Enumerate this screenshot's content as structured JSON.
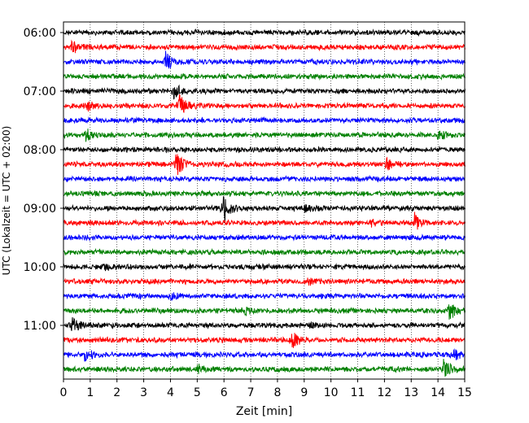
{
  "chart_data": {
    "type": "line",
    "subtype": "helicorder-seismogram",
    "title": "",
    "xlabel": "Zeit  [min]",
    "ylabel": "UTC (Lokalzeit = UTC + 02:00)",
    "xlim": [
      0,
      15
    ],
    "x_ticks": [
      "0",
      "1",
      "2",
      "3",
      "4",
      "5",
      "6",
      "7",
      "8",
      "9",
      "10",
      "11",
      "12",
      "13",
      "14",
      "15"
    ],
    "grid": "vertical dotted at each minute",
    "trace_colors": [
      "#000000",
      "#ff0000",
      "#0000ff",
      "#008000"
    ],
    "trace_interval_min": 15,
    "y_tick_labels": [
      "06:00",
      "07:00",
      "08:00",
      "09:00",
      "10:00",
      "11:00"
    ],
    "traces": [
      {
        "start": "06:00",
        "color": "#000000",
        "events": []
      },
      {
        "start": "06:15",
        "color": "#ff0000",
        "events": [
          {
            "t": 0.3,
            "amp": 0.6
          }
        ]
      },
      {
        "start": "06:30",
        "color": "#0000ff",
        "events": [
          {
            "t": 3.8,
            "amp": 1.0
          }
        ]
      },
      {
        "start": "06:45",
        "color": "#008000",
        "events": []
      },
      {
        "start": "07:00",
        "color": "#000000",
        "events": [
          {
            "t": 4.1,
            "amp": 0.8
          }
        ]
      },
      {
        "start": "07:15",
        "color": "#ff0000",
        "events": [
          {
            "t": 4.3,
            "amp": 1.2
          },
          {
            "t": 0.9,
            "amp": 0.4
          }
        ]
      },
      {
        "start": "07:30",
        "color": "#0000ff",
        "events": []
      },
      {
        "start": "07:45",
        "color": "#008000",
        "events": [
          {
            "t": 0.8,
            "amp": 0.7
          },
          {
            "t": 14.0,
            "amp": 0.5
          }
        ]
      },
      {
        "start": "08:00",
        "color": "#000000",
        "events": []
      },
      {
        "start": "08:15",
        "color": "#ff0000",
        "events": [
          {
            "t": 4.2,
            "amp": 1.3
          },
          {
            "t": 12.0,
            "amp": 0.9
          }
        ]
      },
      {
        "start": "08:30",
        "color": "#0000ff",
        "events": []
      },
      {
        "start": "08:45",
        "color": "#008000",
        "events": []
      },
      {
        "start": "09:00",
        "color": "#000000",
        "events": [
          {
            "t": 5.95,
            "amp": 1.6
          },
          {
            "t": 9.0,
            "amp": 0.3
          }
        ]
      },
      {
        "start": "09:15",
        "color": "#ff0000",
        "events": [
          {
            "t": 13.1,
            "amp": 1.0
          },
          {
            "t": 11.5,
            "amp": 0.3
          }
        ]
      },
      {
        "start": "09:30",
        "color": "#0000ff",
        "events": []
      },
      {
        "start": "09:45",
        "color": "#008000",
        "events": []
      },
      {
        "start": "10:00",
        "color": "#000000",
        "events": [
          {
            "t": 1.5,
            "amp": 0.4
          }
        ]
      },
      {
        "start": "10:15",
        "color": "#ff0000",
        "events": [
          {
            "t": 9.1,
            "amp": 0.4
          }
        ]
      },
      {
        "start": "10:30",
        "color": "#0000ff",
        "events": [
          {
            "t": 4.0,
            "amp": 0.3
          }
        ]
      },
      {
        "start": "10:45",
        "color": "#008000",
        "events": [
          {
            "t": 14.4,
            "amp": 1.1
          },
          {
            "t": 6.7,
            "amp": 0.4
          }
        ]
      },
      {
        "start": "11:00",
        "color": "#000000",
        "events": [
          {
            "t": 0.3,
            "amp": 0.7
          },
          {
            "t": 9.2,
            "amp": 0.3
          }
        ]
      },
      {
        "start": "11:15",
        "color": "#ff0000",
        "events": [
          {
            "t": 8.5,
            "amp": 1.2
          }
        ]
      },
      {
        "start": "11:30",
        "color": "#0000ff",
        "events": [
          {
            "t": 0.8,
            "amp": 0.6
          },
          {
            "t": 14.6,
            "amp": 0.6
          }
        ]
      },
      {
        "start": "11:45",
        "color": "#008000",
        "events": [
          {
            "t": 14.2,
            "amp": 1.3
          },
          {
            "t": 5.0,
            "amp": 0.4
          }
        ]
      }
    ]
  }
}
